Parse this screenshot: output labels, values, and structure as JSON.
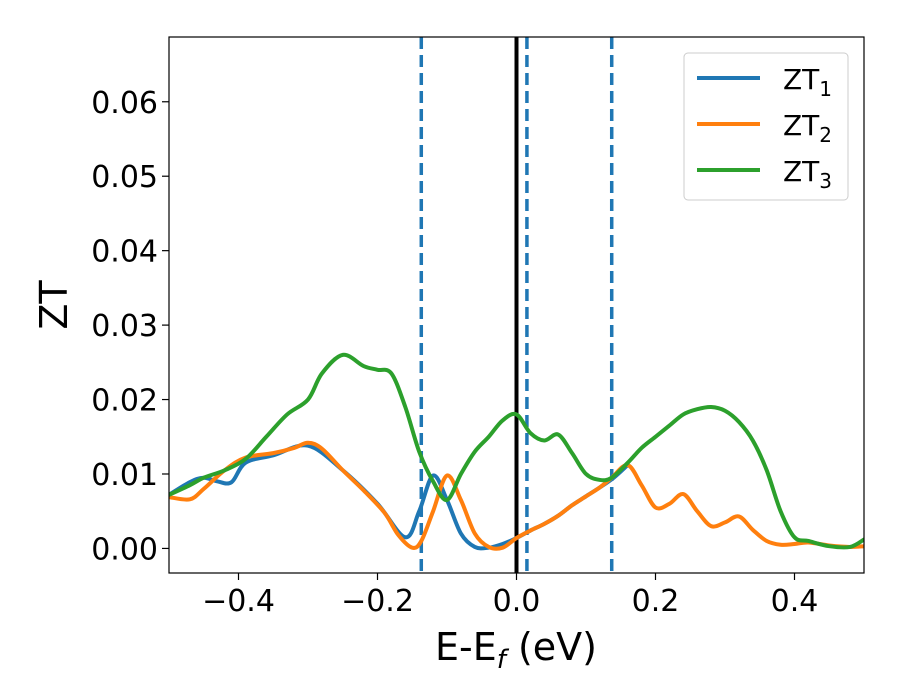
{
  "chart_data": {
    "type": "line",
    "xlabel": {
      "main": "E-E",
      "sub": "f",
      "unit": " (eV)"
    },
    "ylabel": "ZT",
    "xlim": [
      -0.5,
      0.5
    ],
    "ylim": [
      -0.0033,
      0.0687
    ],
    "xticks": [
      -0.4,
      -0.2,
      0.0,
      0.2,
      0.4
    ],
    "xtick_labels": [
      "−0.4",
      "−0.2",
      "0.0",
      "0.2",
      "0.4"
    ],
    "yticks": [
      0.0,
      0.01,
      0.02,
      0.03,
      0.04,
      0.05,
      0.06
    ],
    "ytick_labels": [
      "0.00",
      "0.01",
      "0.02",
      "0.03",
      "0.04",
      "0.05",
      "0.06"
    ],
    "grid": false,
    "legend_position": "top-right",
    "vertical_lines": [
      {
        "x": 0.0,
        "style": "solid",
        "color": "#000000"
      },
      {
        "x": -0.137,
        "style": "dashed",
        "color": "#1f77b4"
      },
      {
        "x": 0.015,
        "style": "dashed",
        "color": "#1f77b4"
      },
      {
        "x": 0.137,
        "style": "dashed",
        "color": "#1f77b4"
      }
    ],
    "series": [
      {
        "name": "ZT",
        "subscript": "1",
        "color": "#1f77b4",
        "x": [
          -0.5,
          -0.47,
          -0.45,
          -0.43,
          -0.41,
          -0.39,
          -0.35,
          -0.3,
          -0.25,
          -0.2,
          -0.16,
          -0.14,
          -0.12,
          -0.1,
          -0.08,
          -0.06,
          -0.04,
          -0.02,
          0.0,
          0.02,
          0.04,
          0.06,
          0.08,
          0.1,
          0.12,
          0.14,
          0.16
        ],
        "y": [
          0.0072,
          0.0089,
          0.0095,
          0.009,
          0.0089,
          0.0115,
          0.0125,
          0.0138,
          0.0105,
          0.006,
          0.0015,
          0.005,
          0.0098,
          0.0065,
          0.002,
          0.0002,
          0.0001,
          0.0006,
          0.0014,
          0.0024,
          0.0033,
          0.0044,
          0.0058,
          0.007,
          0.0082,
          0.0095,
          0.0112
        ]
      },
      {
        "name": "ZT",
        "subscript": "2",
        "color": "#ff7f0e",
        "x": [
          -0.5,
          -0.47,
          -0.45,
          -0.42,
          -0.39,
          -0.35,
          -0.32,
          -0.3,
          -0.28,
          -0.25,
          -0.22,
          -0.19,
          -0.17,
          -0.15,
          -0.137,
          -0.12,
          -0.1,
          -0.08,
          -0.06,
          -0.04,
          -0.02,
          0.0,
          0.02,
          0.04,
          0.06,
          0.08,
          0.1,
          0.12,
          0.137,
          0.16,
          0.18,
          0.2,
          0.22,
          0.24,
          0.26,
          0.28,
          0.3,
          0.32,
          0.34,
          0.36,
          0.38,
          0.4,
          0.42,
          0.45,
          0.48,
          0.5
        ],
        "y": [
          0.0069,
          0.0066,
          0.008,
          0.0105,
          0.0122,
          0.0128,
          0.0135,
          0.0142,
          0.0134,
          0.0105,
          0.0078,
          0.0048,
          0.0018,
          0.0001,
          0.001,
          0.005,
          0.0098,
          0.0065,
          0.002,
          0.0002,
          0.0001,
          0.0014,
          0.0024,
          0.0033,
          0.0044,
          0.0058,
          0.007,
          0.0082,
          0.0095,
          0.0112,
          0.0085,
          0.0055,
          0.006,
          0.0073,
          0.005,
          0.003,
          0.0035,
          0.0043,
          0.0025,
          0.001,
          0.0005,
          0.0006,
          0.0008,
          0.0004,
          0.0002,
          0.0003
        ]
      },
      {
        "name": "ZT",
        "subscript": "3",
        "color": "#2ca02c",
        "x": [
          -0.5,
          -0.47,
          -0.45,
          -0.42,
          -0.39,
          -0.36,
          -0.33,
          -0.3,
          -0.28,
          -0.25,
          -0.22,
          -0.2,
          -0.18,
          -0.16,
          -0.14,
          -0.12,
          -0.1,
          -0.08,
          -0.06,
          -0.04,
          -0.02,
          0.0,
          0.02,
          0.04,
          0.06,
          0.08,
          0.1,
          0.12,
          0.137,
          0.16,
          0.18,
          0.2,
          0.22,
          0.24,
          0.26,
          0.28,
          0.3,
          0.32,
          0.34,
          0.36,
          0.38,
          0.4,
          0.42,
          0.45,
          0.48,
          0.5
        ],
        "y": [
          0.0072,
          0.0085,
          0.0095,
          0.0105,
          0.012,
          0.015,
          0.018,
          0.02,
          0.0235,
          0.026,
          0.0245,
          0.024,
          0.0235,
          0.019,
          0.013,
          0.009,
          0.0065,
          0.01,
          0.013,
          0.015,
          0.0172,
          0.018,
          0.0155,
          0.0145,
          0.0153,
          0.0128,
          0.01,
          0.0092,
          0.0095,
          0.0115,
          0.0135,
          0.015,
          0.0165,
          0.018,
          0.0187,
          0.019,
          0.0185,
          0.017,
          0.0145,
          0.0105,
          0.005,
          0.0015,
          0.001,
          0.0003,
          0.0002,
          0.0012
        ]
      }
    ]
  }
}
